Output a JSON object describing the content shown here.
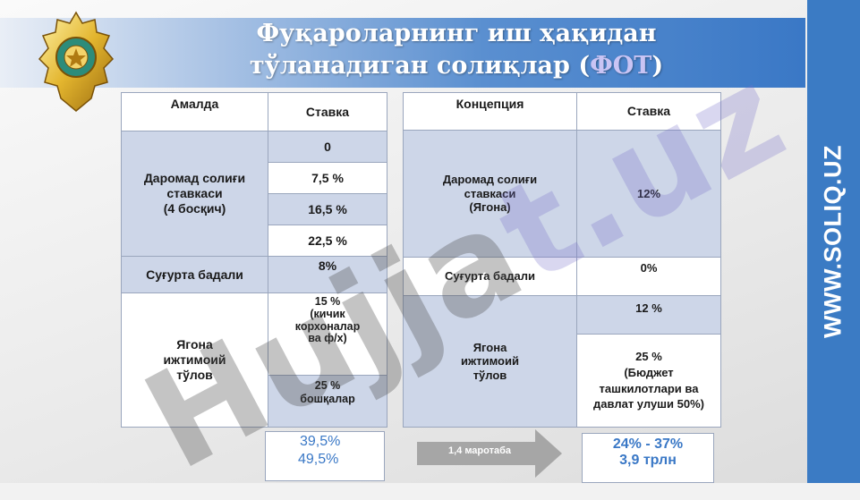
{
  "title": {
    "line1": "Фуқароларнинг иш ҳақидан",
    "line2_prefix": "тўланадиган солиқлар (",
    "line2_highlight": "ФОТ",
    "line2_suffix": ")"
  },
  "site_label": "WWW.SOLIQ.UZ",
  "watermark": {
    "part1": "Hujja",
    "part2": "t.uz"
  },
  "left_table": {
    "header": {
      "col1": "Амалда",
      "col2": "Ставка"
    },
    "income_tax_label": [
      "Даромад солиғи",
      "ставкаси",
      "(4 босқич)"
    ],
    "income_tax_rates": [
      "0",
      "7,5 %",
      "16,5 %",
      "22,5 %"
    ],
    "insurance_label": "Суғурта бадали",
    "insurance_rate": "8%",
    "social_label": [
      "Ягона",
      "ижтимоий",
      "тўлов"
    ],
    "social_rate_small": [
      "15 %",
      "(кичик",
      "корхоналар",
      "ва ф/х)"
    ],
    "social_rate_other": [
      "25 %",
      "бошқалар"
    ]
  },
  "right_table": {
    "header": {
      "col1": "Концепция",
      "col2": "Ставка"
    },
    "income_tax_label": [
      "Даромад солиғи",
      "ставкаси",
      "(Ягона)"
    ],
    "income_tax_rate": "12%",
    "insurance_label": "Суғурта бадали",
    "insurance_rate": "0%",
    "social_label": [
      "Ягона",
      "ижтимоий",
      "тўлов"
    ],
    "social_rate_1": "12 %",
    "social_rate_2": [
      "25 %",
      "(Бюджет",
      "ташкилотлари ва",
      "давлат улуши 50%)"
    ]
  },
  "summary_left": [
    "39,5%",
    "49,5%"
  ],
  "arrow_label": "1,4 маротаба",
  "summary_right": [
    "24% - 37%",
    "3,9 трлн"
  ],
  "colors": {
    "sidebar": "#3b7bc4",
    "cell_blue": "#cdd6e8",
    "summary_text": "#3a78c6",
    "arrow": "#a6a6a6"
  }
}
